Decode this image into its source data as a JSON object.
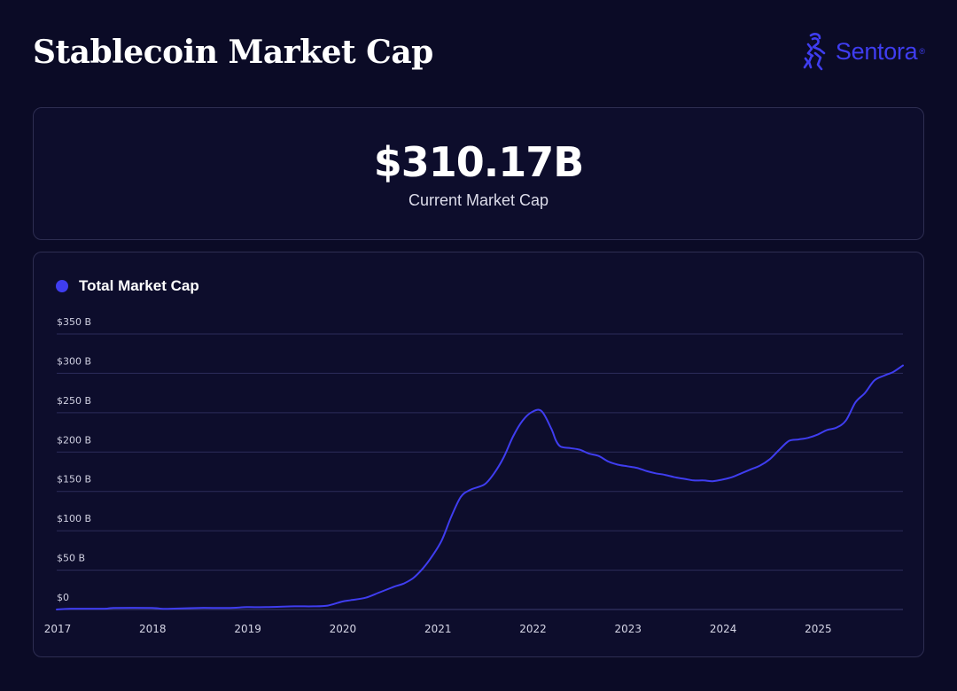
{
  "header": {
    "title": "Stablecoin Market Cap",
    "brand": "Sentora",
    "brand_mark": "®",
    "brand_icon": "goat-logo-icon"
  },
  "kpi": {
    "value": "$310.17B",
    "label": "Current Market Cap"
  },
  "colors": {
    "background": "#0b0b26",
    "card": "#0d0d2c",
    "accent": "#3f3df0",
    "grid": "#2c2c5a"
  },
  "chart_data": {
    "type": "line",
    "title": "",
    "xlabel": "",
    "ylabel": "",
    "legend": "top-left",
    "grid": true,
    "ylim": [
      0,
      350
    ],
    "xlim": [
      2017.0,
      2025.9
    ],
    "y_ticks": [
      {
        "value": 0,
        "label": "$0"
      },
      {
        "value": 50,
        "label": "$50 B"
      },
      {
        "value": 100,
        "label": "$100 B"
      },
      {
        "value": 150,
        "label": "$150 B"
      },
      {
        "value": 200,
        "label": "$200 B"
      },
      {
        "value": 250,
        "label": "$250 B"
      },
      {
        "value": 300,
        "label": "$300 B"
      },
      {
        "value": 350,
        "label": "$350 B"
      }
    ],
    "x_ticks": [
      {
        "value": 2017,
        "label": "2017"
      },
      {
        "value": 2018,
        "label": "2018"
      },
      {
        "value": 2019,
        "label": "2019"
      },
      {
        "value": 2020,
        "label": "2020"
      },
      {
        "value": 2021,
        "label": "2021"
      },
      {
        "value": 2022,
        "label": "2022"
      },
      {
        "value": 2023,
        "label": "2023"
      },
      {
        "value": 2024,
        "label": "2024"
      },
      {
        "value": 2025,
        "label": "2025"
      }
    ],
    "series": [
      {
        "name": "Total Market Cap",
        "x": [
          2017.0,
          2017.15,
          2017.5,
          2017.6,
          2018.0,
          2018.1,
          2018.2,
          2018.5,
          2018.8,
          2019.0,
          2019.2,
          2019.5,
          2019.7,
          2019.85,
          2020.0,
          2020.1,
          2020.25,
          2020.4,
          2020.55,
          2020.65,
          2020.75,
          2020.85,
          2020.95,
          2021.05,
          2021.15,
          2021.25,
          2021.35,
          2021.5,
          2021.6,
          2021.7,
          2021.8,
          2021.9,
          2022.0,
          2022.1,
          2022.2,
          2022.25,
          2022.3,
          2022.4,
          2022.5,
          2022.6,
          2022.7,
          2022.8,
          2022.9,
          2023.0,
          2023.1,
          2023.2,
          2023.3,
          2023.4,
          2023.5,
          2023.6,
          2023.7,
          2023.8,
          2023.9,
          2024.0,
          2024.1,
          2024.2,
          2024.3,
          2024.4,
          2024.5,
          2024.6,
          2024.7,
          2024.8,
          2024.9,
          2025.0,
          2025.1,
          2025.2,
          2025.3,
          2025.4,
          2025.5,
          2025.6,
          2025.7,
          2025.8,
          2025.9
        ],
        "values": [
          0,
          1,
          1,
          2,
          2,
          1,
          1,
          2,
          2,
          3,
          3,
          4,
          4,
          5,
          10,
          12,
          15,
          22,
          29,
          33,
          40,
          52,
          68,
          88,
          118,
          143,
          152,
          159,
          173,
          193,
          220,
          240,
          251,
          252,
          230,
          215,
          207,
          205,
          203,
          198,
          195,
          188,
          184,
          182,
          180,
          176,
          173,
          171,
          168,
          166,
          164,
          164,
          163,
          165,
          168,
          173,
          178,
          183,
          191,
          203,
          214,
          216,
          218,
          222,
          228,
          231,
          240,
          263,
          275,
          291,
          297,
          302,
          310
        ]
      }
    ]
  }
}
